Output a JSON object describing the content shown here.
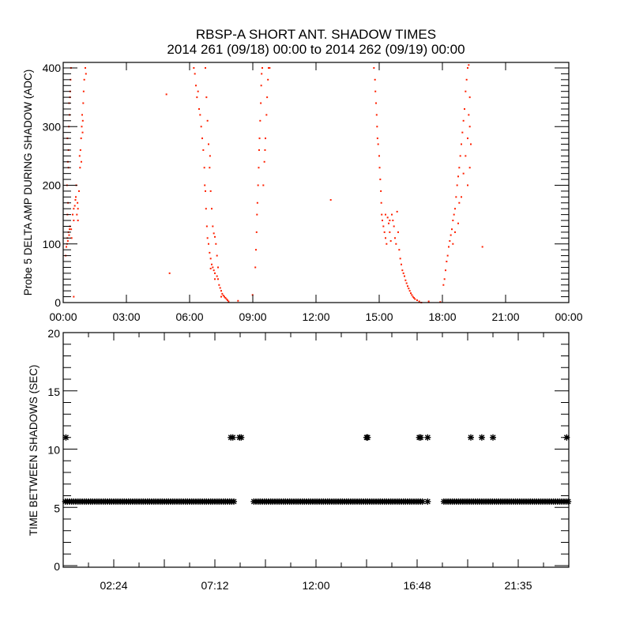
{
  "chart_data": [
    {
      "type": "scatter",
      "title": "RBSP-A SHORT ANT. SHADOW TIMES",
      "subtitle": "2014 261 (09/18) 00:00 to 2014 262 (09/19) 00:00",
      "xlabel": "",
      "ylabel": "Probe 5 DELTA AMP DURING SHADOW (ADC)",
      "xlim_hours": [
        0,
        24
      ],
      "ylim": [
        0,
        410
      ],
      "x_tick_labels": [
        "00:00",
        "03:00",
        "06:00",
        "09:00",
        "12:00",
        "15:00",
        "18:00",
        "21:00",
        "00:00"
      ],
      "x_tick_hours": [
        0,
        3,
        6,
        9,
        12,
        15,
        18,
        21,
        24
      ],
      "y_tick_labels": [
        "0",
        "100",
        "200",
        "300",
        "400"
      ],
      "y_ticks": [
        0,
        100,
        200,
        300,
        400
      ],
      "color": "#ff2000",
      "grid": false,
      "points_hour_value": [
        [
          0.12,
          80
        ],
        [
          0.15,
          95
        ],
        [
          0.18,
          100
        ],
        [
          0.2,
          110
        ],
        [
          0.22,
          105
        ],
        [
          0.25,
          120
        ],
        [
          0.28,
          115
        ],
        [
          0.3,
          125
        ],
        [
          0.32,
          130
        ],
        [
          0.2,
          150
        ],
        [
          0.23,
          170
        ],
        [
          0.18,
          200
        ],
        [
          0.22,
          240
        ],
        [
          0.25,
          260
        ],
        [
          0.2,
          280
        ],
        [
          0.27,
          300
        ],
        [
          0.3,
          320
        ],
        [
          0.28,
          340
        ],
        [
          0.33,
          360
        ],
        [
          0.35,
          380
        ],
        [
          0.37,
          400
        ],
        [
          0.32,
          350
        ],
        [
          0.25,
          230
        ],
        [
          0.4,
          110
        ],
        [
          0.38,
          125
        ],
        [
          0.45,
          150
        ],
        [
          0.5,
          160
        ],
        [
          0.55,
          165
        ],
        [
          0.5,
          140
        ],
        [
          0.6,
          180
        ],
        [
          0.62,
          200
        ],
        [
          0.58,
          175
        ],
        [
          0.65,
          150
        ],
        [
          0.7,
          140
        ],
        [
          0.7,
          160
        ],
        [
          0.68,
          170
        ],
        [
          0.75,
          190
        ],
        [
          0.8,
          230
        ],
        [
          0.82,
          260
        ],
        [
          0.78,
          250
        ],
        [
          0.85,
          280
        ],
        [
          0.88,
          300
        ],
        [
          0.9,
          320
        ],
        [
          0.92,
          290
        ],
        [
          0.95,
          340
        ],
        [
          0.97,
          360
        ],
        [
          1.0,
          380
        ],
        [
          1.05,
          400
        ],
        [
          1.08,
          390
        ],
        [
          0.86,
          240
        ],
        [
          0.93,
          310
        ],
        [
          0.5,
          10
        ],
        [
          4.9,
          355
        ],
        [
          5.05,
          50
        ],
        [
          6.2,
          400
        ],
        [
          6.25,
          390
        ],
        [
          6.3,
          370
        ],
        [
          6.35,
          350
        ],
        [
          6.4,
          360
        ],
        [
          6.45,
          330
        ],
        [
          6.5,
          320
        ],
        [
          6.55,
          300
        ],
        [
          6.6,
          280
        ],
        [
          6.65,
          260
        ],
        [
          6.7,
          230
        ],
        [
          6.72,
          200
        ],
        [
          6.75,
          190
        ],
        [
          6.78,
          160
        ],
        [
          6.82,
          130
        ],
        [
          6.85,
          110
        ],
        [
          6.9,
          100
        ],
        [
          6.95,
          85
        ],
        [
          7.0,
          75
        ],
        [
          7.05,
          65
        ],
        [
          7.1,
          60
        ],
        [
          7.15,
          55
        ],
        [
          7.2,
          50
        ],
        [
          7.3,
          45
        ],
        [
          7.35,
          40
        ],
        [
          7.4,
          30
        ],
        [
          7.45,
          25
        ],
        [
          7.5,
          20
        ],
        [
          7.55,
          15
        ],
        [
          7.6,
          12
        ],
        [
          7.65,
          10
        ],
        [
          7.7,
          8
        ],
        [
          7.75,
          6
        ],
        [
          7.8,
          4
        ],
        [
          7.85,
          2
        ],
        [
          7.0,
          58
        ],
        [
          7.2,
          40
        ],
        [
          7.5,
          10
        ],
        [
          6.75,
          400
        ],
        [
          6.8,
          350
        ],
        [
          6.85,
          310
        ],
        [
          6.9,
          270
        ],
        [
          6.95,
          230
        ],
        [
          7.0,
          190
        ],
        [
          7.05,
          160
        ],
        [
          7.1,
          130
        ],
        [
          7.15,
          118
        ],
        [
          7.2,
          112
        ],
        [
          7.25,
          100
        ],
        [
          7.3,
          80
        ],
        [
          7.35,
          60
        ],
        [
          6.97,
          250
        ],
        [
          8.3,
          3
        ],
        [
          8.99,
          13
        ],
        [
          9.12,
          60
        ],
        [
          9.15,
          90
        ],
        [
          9.18,
          120
        ],
        [
          9.2,
          150
        ],
        [
          9.22,
          170
        ],
        [
          9.25,
          200
        ],
        [
          9.28,
          230
        ],
        [
          9.3,
          260
        ],
        [
          9.32,
          280
        ],
        [
          9.35,
          310
        ],
        [
          9.38,
          340
        ],
        [
          9.4,
          370
        ],
        [
          9.42,
          390
        ],
        [
          9.45,
          400
        ],
        [
          9.5,
          200
        ],
        [
          9.55,
          240
        ],
        [
          9.6,
          280
        ],
        [
          9.65,
          320
        ],
        [
          9.68,
          350
        ],
        [
          9.72,
          380
        ],
        [
          9.75,
          400
        ],
        [
          9.8,
          400
        ],
        [
          9.58,
          260
        ],
        [
          12.7,
          175
        ],
        [
          14.75,
          400
        ],
        [
          14.8,
          380
        ],
        [
          14.82,
          360
        ],
        [
          14.85,
          340
        ],
        [
          14.88,
          320
        ],
        [
          14.9,
          300
        ],
        [
          14.92,
          280
        ],
        [
          14.95,
          270
        ],
        [
          15.0,
          250
        ],
        [
          15.02,
          230
        ],
        [
          15.05,
          210
        ],
        [
          15.08,
          190
        ],
        [
          15.1,
          170
        ],
        [
          15.12,
          150
        ],
        [
          15.15,
          140
        ],
        [
          15.2,
          130
        ],
        [
          15.25,
          120
        ],
        [
          15.3,
          110
        ],
        [
          15.35,
          100
        ],
        [
          15.4,
          145
        ],
        [
          15.45,
          135
        ],
        [
          15.5,
          120
        ],
        [
          15.55,
          105
        ],
        [
          15.6,
          150
        ],
        [
          15.65,
          140
        ],
        [
          15.7,
          130
        ],
        [
          15.75,
          110
        ],
        [
          15.8,
          100
        ],
        [
          15.85,
          155
        ],
        [
          15.9,
          120
        ],
        [
          15.95,
          90
        ],
        [
          16.0,
          75
        ],
        [
          16.05,
          65
        ],
        [
          16.1,
          55
        ],
        [
          16.15,
          50
        ],
        [
          16.2,
          45
        ],
        [
          16.25,
          38
        ],
        [
          16.3,
          33
        ],
        [
          16.35,
          28
        ],
        [
          16.4,
          24
        ],
        [
          16.45,
          20
        ],
        [
          16.5,
          16
        ],
        [
          16.55,
          13
        ],
        [
          16.6,
          10
        ],
        [
          16.65,
          8
        ],
        [
          16.7,
          6
        ],
        [
          16.8,
          4
        ],
        [
          16.9,
          2
        ],
        [
          17.0,
          0
        ],
        [
          15.3,
          150
        ],
        [
          15.5,
          140
        ],
        [
          17.35,
          2
        ],
        [
          17.9,
          1
        ],
        [
          18.05,
          30
        ],
        [
          18.1,
          40
        ],
        [
          18.15,
          55
        ],
        [
          18.2,
          70
        ],
        [
          18.25,
          80
        ],
        [
          18.3,
          95
        ],
        [
          18.35,
          105
        ],
        [
          18.4,
          115
        ],
        [
          18.45,
          125
        ],
        [
          18.5,
          140
        ],
        [
          18.55,
          150
        ],
        [
          18.6,
          160
        ],
        [
          18.65,
          180
        ],
        [
          18.7,
          200
        ],
        [
          18.75,
          215
        ],
        [
          18.8,
          230
        ],
        [
          18.85,
          250
        ],
        [
          18.9,
          270
        ],
        [
          18.95,
          290
        ],
        [
          19.0,
          310
        ],
        [
          19.05,
          330
        ],
        [
          19.1,
          360
        ],
        [
          19.15,
          380
        ],
        [
          19.2,
          400
        ],
        [
          19.25,
          405
        ],
        [
          18.5,
          100
        ],
        [
          18.6,
          120
        ],
        [
          18.75,
          135
        ],
        [
          18.8,
          170
        ],
        [
          18.9,
          180
        ],
        [
          19.0,
          220
        ],
        [
          19.1,
          250
        ],
        [
          19.2,
          280
        ],
        [
          19.25,
          320
        ],
        [
          19.3,
          350
        ],
        [
          19.3,
          300
        ],
        [
          19.2,
          200
        ],
        [
          19.3,
          230
        ],
        [
          19.35,
          270
        ],
        [
          19.9,
          95
        ]
      ]
    },
    {
      "type": "scatter",
      "marker": "asterisk",
      "ylabel": "TIME BETWEEN SHADOWS (SEC)",
      "xlim_hours": [
        0,
        24
      ],
      "ylim": [
        0,
        20
      ],
      "x_tick_labels": [
        "02:24",
        "07:12",
        "12:00",
        "16:48",
        "21:35"
      ],
      "x_tick_hours": [
        2.4,
        4.8,
        7.2,
        9.6,
        12.0,
        14.4,
        16.8,
        19.2,
        21.6
      ],
      "x_labeled_tick_hours": [
        2.4,
        7.2,
        12.0,
        16.8,
        21.6
      ],
      "y_tick_labels": [
        "0",
        "5",
        "10",
        "15",
        "20"
      ],
      "y_ticks": [
        0,
        5,
        10,
        15,
        20
      ],
      "color": "#000000",
      "continuous_runs": [
        {
          "start_hour": 0.1,
          "end_hour": 8.1,
          "value": 5.5
        },
        {
          "start_hour": 9.05,
          "end_hour": 17.1,
          "value": 5.5
        },
        {
          "start_hour": 18.07,
          "end_hour": 24.0,
          "value": 5.5
        }
      ],
      "points_hour_value": [
        [
          17.3,
          5.5
        ],
        [
          0.13,
          11
        ],
        [
          7.96,
          11
        ],
        [
          8.05,
          11
        ],
        [
          8.37,
          11
        ],
        [
          8.45,
          11
        ],
        [
          14.4,
          11
        ],
        [
          14.45,
          11
        ],
        [
          16.9,
          11
        ],
        [
          16.97,
          11
        ],
        [
          17.3,
          11
        ],
        [
          19.35,
          11
        ],
        [
          19.87,
          11
        ],
        [
          20.4,
          11
        ],
        [
          23.9,
          11
        ]
      ]
    }
  ]
}
